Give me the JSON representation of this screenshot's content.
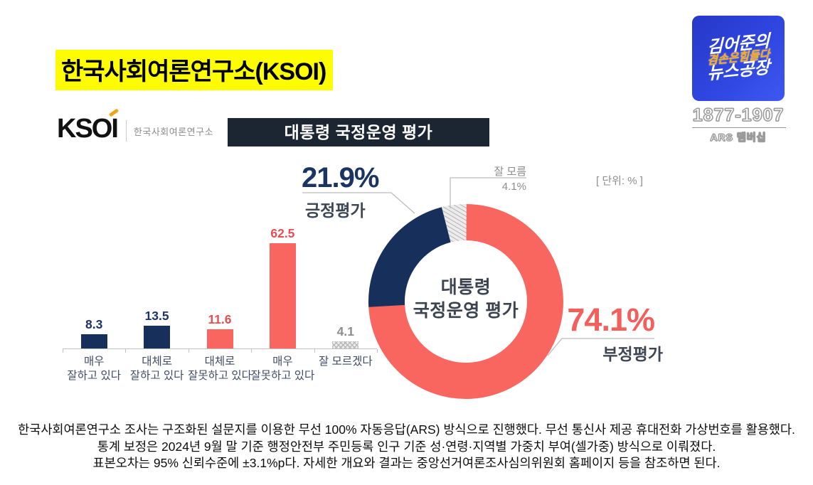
{
  "page_title": "한국사회여론연구소(KSOI)",
  "broadcaster": {
    "logo_line1": "김어준의",
    "logo_line2": "겸손은힘들다",
    "logo_line3": "뉴스공장",
    "phone": "1877-1907",
    "ars_label": "ARS 멤버십",
    "logo_bg": "#2f46e0",
    "logo_accent": "#ffaf12"
  },
  "ksoi_logo": {
    "acronym": "KSOI",
    "name": "한국사회여론연구소"
  },
  "chart_header": "대통령 국정운영 평가",
  "unit_label": "[ 단위: % ]",
  "chart_data": [
    {
      "type": "bar",
      "title": "대통령 국정운영 평가",
      "unit": "%",
      "ylim": [
        0,
        70
      ],
      "grid": false,
      "categories": [
        "매우\n잘하고 있다",
        "대체로\n잘하고 있다",
        "대체로\n잘못하고 있다",
        "매우\n잘못하고 있다",
        "잘 모르겠다"
      ],
      "values": [
        8.3,
        13.5,
        11.6,
        62.5,
        4.1
      ],
      "bar_colors": [
        "#16305b",
        "#16305b",
        "#f9655f",
        "#f9655f",
        "hatch"
      ],
      "value_label_colors": [
        "#1b3563",
        "#1b3563",
        "#e64f52",
        "#e64f52",
        "#8d8d8d"
      ]
    },
    {
      "type": "pie",
      "subtype": "donut",
      "center_label": "대통령\n국정운영 평가",
      "start_angle_deg": -90,
      "direction": "clockwise",
      "segments": [
        {
          "name": "부정평가",
          "value": 74.1,
          "color": "#f9655f"
        },
        {
          "name": "긍정평가",
          "value": 21.9,
          "color": "#16305b"
        },
        {
          "name": "잘 모름",
          "value": 4.1,
          "color": "hatch"
        }
      ],
      "callouts": {
        "positive": {
          "value_label": "21.9%",
          "name_label": "긍정평가"
        },
        "negative": {
          "value_label": "74.1%",
          "name_label": "부정평가"
        },
        "unknown": {
          "name_label": "잘 모름",
          "value_label": "4.1%"
        }
      }
    }
  ],
  "footer": {
    "lines": [
      "한국사회여론연구소 조사는 구조화된 설문지를 이용한 무선 100% 자동응답(ARS) 방식으로 진행했다. 무선 통신사 제공 휴대전화 가상번호를 활용했다.",
      "통계 보정은 2024년 9월 말 기준 행정안전부 주민등록 인구 기준 성·연령·지역별 가중치 부여(셀가중) 방식으로 이뤄졌다.",
      "표본오차는 95% 신뢰수준에 ±3.1%p다. 자세한 개요와 결과는 중앙선거여론조사심의위원회 홈페이지 등을 참조하면 된다."
    ]
  }
}
